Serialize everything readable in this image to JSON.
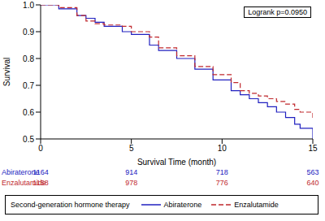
{
  "chart_data": {
    "type": "line",
    "annotation": "Logrank p=0.0950",
    "xlabel": "Survival Time (month)",
    "ylabel": "Survival",
    "x": [
      0,
      1,
      2,
      2.5,
      3,
      3.5,
      4.5,
      5,
      6,
      6.5,
      7.5,
      8.5,
      9.5,
      10.5,
      11,
      11.5,
      12,
      12.5,
      13,
      13.5,
      14,
      14.3,
      15
    ],
    "series": [
      {
        "name": "Abiraterone",
        "color": "#2020c0",
        "line_style": "solid",
        "values": [
          1.0,
          0.985,
          0.96,
          0.95,
          0.935,
          0.92,
          0.9,
          0.89,
          0.85,
          0.83,
          0.8,
          0.76,
          0.72,
          0.68,
          0.665,
          0.65,
          0.635,
          0.62,
          0.6,
          0.58,
          0.555,
          0.54,
          0.5
        ],
        "at_risk": [
          1164,
          914,
          718,
          563
        ]
      },
      {
        "name": "Enzalutamide",
        "color": "#c0282d",
        "line_style": "dashed",
        "values": [
          1.0,
          0.99,
          0.96,
          0.94,
          0.93,
          0.925,
          0.92,
          0.9,
          0.88,
          0.84,
          0.81,
          0.77,
          0.74,
          0.71,
          0.68,
          0.67,
          0.66,
          0.65,
          0.64,
          0.63,
          0.61,
          0.6,
          0.57
        ],
        "at_risk": [
          1158,
          978,
          776,
          640
        ]
      }
    ],
    "risk_times": [
      0,
      5,
      10,
      15
    ],
    "legend_title": "Second-generation hormone therapy",
    "xlim": [
      0,
      15
    ],
    "xticks": [
      0,
      5,
      10,
      15
    ],
    "ylim": [
      0.5,
      1
    ],
    "yticks": [
      0.5,
      0.6,
      0.7,
      0.8,
      0.9,
      {
        "value": 1,
        "label": "1.0"
      }
    ],
    "grid": false
  }
}
